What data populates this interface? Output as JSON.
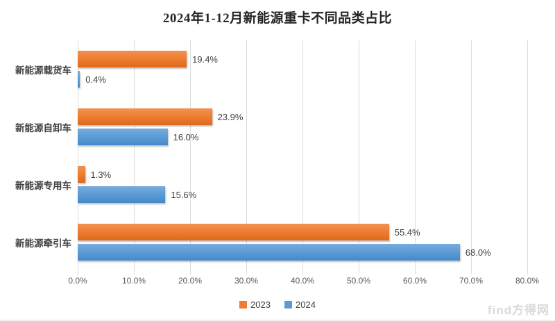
{
  "page": {
    "watermark": "find方得网"
  },
  "chart_data": {
    "type": "bar",
    "orientation": "horizontal",
    "title": "2024年1-12月新能源重卡不同品类占比",
    "categories": [
      "新能源载货车",
      "新能源自卸车",
      "新能源专用车",
      "新能源牵引车"
    ],
    "series": [
      {
        "name": "2023",
        "color": "#ED7D31",
        "values": [
          19.4,
          23.9,
          1.3,
          55.4
        ],
        "labels": [
          "19.4%",
          "23.9%",
          "1.3%",
          "55.4%"
        ]
      },
      {
        "name": "2024",
        "color": "#5B9BD5",
        "values": [
          0.4,
          16.0,
          15.6,
          68.0
        ],
        "labels": [
          "0.4%",
          "16.0%",
          "15.6%",
          "68.0%"
        ]
      }
    ],
    "x_axis": {
      "min": 0,
      "max": 80,
      "step": 10,
      "tick_labels": [
        "0.0%",
        "10.0%",
        "20.0%",
        "30.0%",
        "40.0%",
        "50.0%",
        "60.0%",
        "70.0%",
        "80.0%"
      ]
    },
    "legend": {
      "position": "bottom",
      "entries": [
        "2023",
        "2024"
      ]
    },
    "grid": true,
    "gridline_color": "#DCDCDC",
    "axis_text_color": "#595959",
    "label_text_color": "#404040",
    "title_color": "#262626"
  }
}
